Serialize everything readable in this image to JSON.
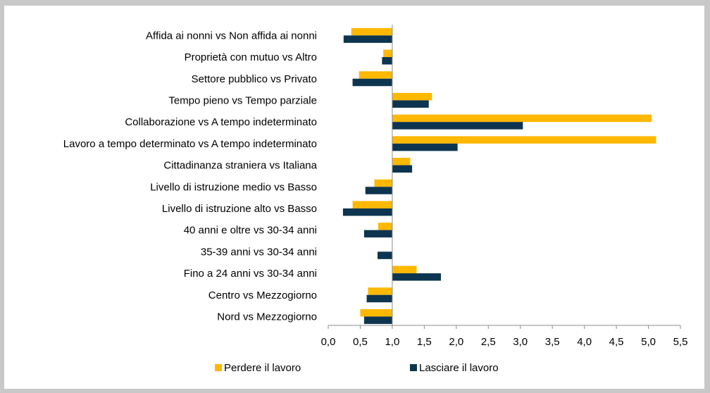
{
  "chart_data": {
    "type": "bar",
    "orientation": "horizontal",
    "categories": [
      "Affida ai nonni vs Non affida ai nonni",
      "Proprietà con mutuo vs Altro",
      "Settore pubblico vs Privato",
      "Tempo pieno vs Tempo parziale",
      "Collaborazione vs A tempo indeterminato",
      "Lavoro a tempo determinato vs A tempo indeterminato",
      "Cittadinanza straniera vs Italiana",
      "Livello di istruzione medio vs Basso",
      "Livello di istruzione alto vs Basso",
      "40 anni e oltre vs 30-34 anni",
      "35-39 anni vs 30-34 anni",
      "Fino a 24 anni vs 30-34 anni",
      "Centro vs Mezzogiorno",
      "Nord vs Mezzogiorno"
    ],
    "baseline": 1.0,
    "series": [
      {
        "name": "Perdere il lavoro",
        "color": "#FFB800",
        "values": [
          0.36,
          0.86,
          0.48,
          1.62,
          5.05,
          5.12,
          1.28,
          0.72,
          0.38,
          0.78,
          1.0,
          1.38,
          0.62,
          0.5
        ]
      },
      {
        "name": "Lasciare il lavoro",
        "color": "#0D3550",
        "values": [
          0.24,
          0.84,
          0.38,
          1.57,
          3.04,
          2.02,
          1.31,
          0.58,
          0.23,
          0.56,
          0.77,
          1.76,
          0.6,
          0.56
        ]
      }
    ],
    "xlim": [
      0.0,
      5.5
    ],
    "xticks": [
      "0,0",
      "0,5",
      "1,0",
      "1,5",
      "2,0",
      "2,5",
      "3,0",
      "3,5",
      "4,0",
      "4,5",
      "5,0",
      "5,5"
    ],
    "legend_position": "bottom",
    "grid": false
  }
}
